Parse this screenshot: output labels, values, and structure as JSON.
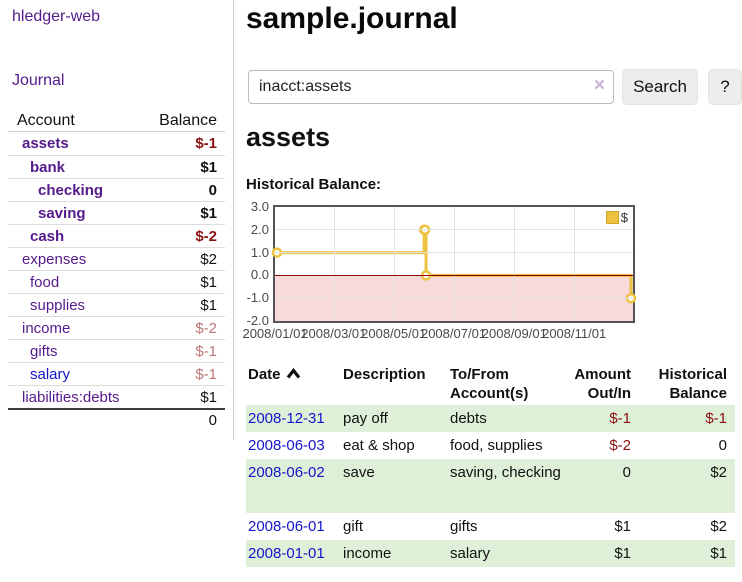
{
  "app": {
    "title": "hledger-web",
    "nav_journal": "Journal"
  },
  "sidebar": {
    "header": {
      "account": "Account",
      "balance": "Balance"
    },
    "accounts": [
      {
        "name": "assets",
        "balance": "$-1"
      },
      {
        "name": "bank",
        "balance": "$1"
      },
      {
        "name": "checking",
        "balance": "0"
      },
      {
        "name": "saving",
        "balance": "$1"
      },
      {
        "name": "cash",
        "balance": "$-2"
      },
      {
        "name": "expenses",
        "balance": "$2"
      },
      {
        "name": "food",
        "balance": "$1"
      },
      {
        "name": "supplies",
        "balance": "$1"
      },
      {
        "name": "income",
        "balance": "$-2"
      },
      {
        "name": "gifts",
        "balance": "$-1"
      },
      {
        "name": "salary",
        "balance": "$-1"
      },
      {
        "name": "liabilities:debts",
        "balance": "$1"
      }
    ],
    "total": "0"
  },
  "main": {
    "title": "sample.journal",
    "search": {
      "value": "inacct:assets",
      "clear_icon": "×",
      "button": "Search",
      "help_button": "?"
    },
    "account_heading": "assets",
    "chart_label": "Historical Balance:"
  },
  "chart_data": {
    "type": "line",
    "title": "Historical Balance",
    "series": [
      {
        "name": "$",
        "color": "#EDC240",
        "steps": true,
        "points": [
          [
            "2008-01-01",
            1
          ],
          [
            "2008-06-01",
            2
          ],
          [
            "2008-06-02",
            2
          ],
          [
            "2008-06-03",
            0
          ],
          [
            "2008-12-31",
            -1
          ]
        ]
      }
    ],
    "xlim": [
      "2008-01-01",
      "2008-12-31"
    ],
    "ylim": [
      -2,
      3
    ],
    "yticks": [
      {
        "value": 3,
        "label": "3.0"
      },
      {
        "value": 2,
        "label": "2.0"
      },
      {
        "value": 1,
        "label": "1.0"
      },
      {
        "value": 0,
        "label": "0.0"
      },
      {
        "value": -1,
        "label": "-1.0"
      },
      {
        "value": -2,
        "label": "-2.0"
      }
    ],
    "xticks": [
      {
        "date": "2008-01-01",
        "label": "2008/01/01"
      },
      {
        "date": "2008-03-01",
        "label": "2008/03/01"
      },
      {
        "date": "2008-05-01",
        "label": "2008/05/01"
      },
      {
        "date": "2008-07-01",
        "label": "2008/07/01"
      },
      {
        "date": "2008-09-01",
        "label": "2008/09/01"
      },
      {
        "date": "2008-11-01",
        "label": "2008/11/01"
      }
    ],
    "grid": true,
    "legend_position": "top-right",
    "negative_region_color": "#f8dada",
    "zero_line_color": "#8b0000"
  },
  "register": {
    "headers": {
      "date": "Date",
      "description": "Description",
      "accounts": "To/From Account(s)",
      "amount": "Amount Out/In",
      "balance": "Historical Balance"
    },
    "rows": [
      {
        "date": "2008-12-31",
        "description": "pay off",
        "accounts": "debts",
        "amount": "$-1",
        "balance": "$-1"
      },
      {
        "date": "2008-06-03",
        "description": "eat & shop",
        "accounts": "food, supplies",
        "amount": "$-2",
        "balance": "0"
      },
      {
        "date": "2008-06-02",
        "description": "save",
        "accounts": "saving, checking",
        "amount": "0",
        "balance": "$2"
      },
      {
        "date": "2008-06-01",
        "description": "gift",
        "accounts": "gifts",
        "amount": "$1",
        "balance": "$2"
      },
      {
        "date": "2008-01-01",
        "description": "income",
        "accounts": "salary",
        "amount": "$1",
        "balance": "$1"
      }
    ]
  },
  "colors": {
    "link_purple": "#551A8B",
    "link_blue": "#1414cc",
    "negative_dark": "#8b1111",
    "negative_light": "#bb7878",
    "row_green": "#dff0d8",
    "series_gold": "#EDC240",
    "chart_border": "#545454",
    "negative_region": "#f8dada",
    "zero_line": "#8b0000"
  }
}
